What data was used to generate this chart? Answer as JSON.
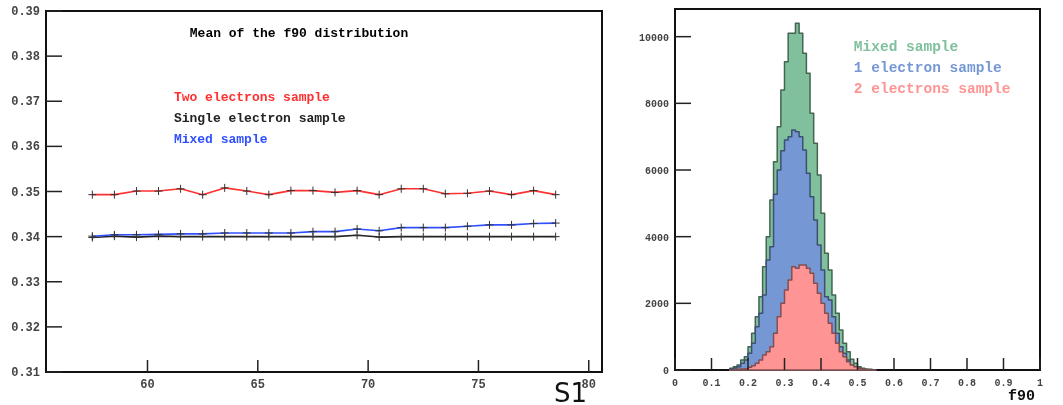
{
  "chart_data": [
    {
      "type": "line",
      "title": "Mean of the f90 distribution",
      "xlabel": "S1",
      "x": [
        57.5,
        58.5,
        59.5,
        60.5,
        61.5,
        62.5,
        63.5,
        64.5,
        65.5,
        66.5,
        67.5,
        68.5,
        69.5,
        70.5,
        71.5,
        72.5,
        73.5,
        74.5,
        75.5,
        76.5,
        77.5,
        78.5
      ],
      "series": [
        {
          "name": "Two electrons sample",
          "color": "#ff3030",
          "values": [
            0.3493,
            0.3493,
            0.3501,
            0.3501,
            0.3506,
            0.3493,
            0.3508,
            0.3501,
            0.3493,
            0.3502,
            0.3502,
            0.3498,
            0.3502,
            0.3493,
            0.3506,
            0.3506,
            0.3495,
            0.3496,
            0.3501,
            0.3493,
            0.3502,
            0.3493
          ]
        },
        {
          "name": "Single electron sample",
          "color": "#222222",
          "values": [
            0.3398,
            0.3401,
            0.3399,
            0.3401,
            0.34,
            0.34,
            0.34,
            0.34,
            0.34,
            0.34,
            0.34,
            0.34,
            0.3403,
            0.3399,
            0.34,
            0.34,
            0.34,
            0.34,
            0.34,
            0.34,
            0.34,
            0.34
          ]
        },
        {
          "name": "Mixed sample",
          "color": "#3050ff",
          "values": [
            0.3401,
            0.3404,
            0.3404,
            0.3405,
            0.3406,
            0.3406,
            0.3408,
            0.3408,
            0.3408,
            0.3408,
            0.3411,
            0.3411,
            0.3417,
            0.3413,
            0.342,
            0.342,
            0.342,
            0.3423,
            0.3426,
            0.3426,
            0.3429,
            0.343
          ]
        }
      ],
      "xlim": [
        55.4,
        80.6
      ],
      "xticks": [
        60,
        65,
        70,
        75,
        80
      ],
      "ylim": [
        0.31,
        0.39
      ],
      "yticks": [
        0.31,
        0.32,
        0.33,
        0.34,
        0.35,
        0.36,
        0.37,
        0.38,
        0.39
      ],
      "marker": "cross",
      "legend": "top",
      "grid": false
    },
    {
      "type": "histogram",
      "xlabel": "f90",
      "bins": [
        0.15,
        0.16,
        0.17,
        0.18,
        0.19,
        0.2,
        0.21,
        0.22,
        0.23,
        0.24,
        0.25,
        0.26,
        0.27,
        0.28,
        0.29,
        0.3,
        0.31,
        0.32,
        0.33,
        0.34,
        0.35,
        0.36,
        0.37,
        0.38,
        0.39,
        0.4,
        0.41,
        0.42,
        0.43,
        0.44,
        0.45,
        0.46,
        0.47,
        0.48,
        0.49,
        0.5,
        0.51,
        0.52,
        0.53,
        0.54,
        0.55
      ],
      "series": [
        {
          "name": "Mixed sample",
          "color": "#80c09c",
          "values": [
            50,
            100,
            150,
            300,
            400,
            700,
            1100,
            1600,
            2200,
            3100,
            4000,
            5100,
            6250,
            7300,
            8400,
            9250,
            10100,
            10100,
            10400,
            10100,
            9500,
            8900,
            7700,
            6800,
            5850,
            4700,
            3500,
            3000,
            2250,
            1700,
            1200,
            800,
            550,
            320,
            200,
            100,
            50,
            30,
            20,
            10
          ]
        },
        {
          "name": "1 electron sample",
          "color": "#7598d4",
          "values": [
            30,
            60,
            100,
            200,
            300,
            500,
            800,
            1300,
            1700,
            2250,
            3300,
            3700,
            5270,
            6000,
            6580,
            6900,
            7000,
            7200,
            7150,
            7000,
            6600,
            5900,
            5200,
            4500,
            3750,
            3000,
            2200,
            2100,
            1600,
            1100,
            700,
            500,
            300,
            150,
            100,
            50,
            30,
            10,
            10,
            10
          ]
        },
        {
          "name": "2 electrons sample",
          "color": "#ff9494",
          "values": [
            0,
            10,
            20,
            30,
            40,
            80,
            130,
            200,
            300,
            450,
            550,
            700,
            1100,
            1600,
            2000,
            2400,
            2700,
            3100,
            3050,
            3150,
            3150,
            3050,
            2900,
            2600,
            2300,
            2000,
            1700,
            1400,
            1100,
            800,
            550,
            400,
            250,
            150,
            100,
            50,
            30,
            10,
            0,
            0
          ]
        }
      ],
      "xlim": [
        0,
        1
      ],
      "xticks": [
        0,
        0.1,
        0.2,
        0.3,
        0.4,
        0.5,
        0.6,
        0.7,
        0.8,
        0.9,
        1
      ],
      "ylim": [
        0,
        10830
      ],
      "yticks": [
        0,
        2000,
        4000,
        6000,
        8000,
        10000
      ],
      "legend": "top right",
      "grid": false
    }
  ]
}
